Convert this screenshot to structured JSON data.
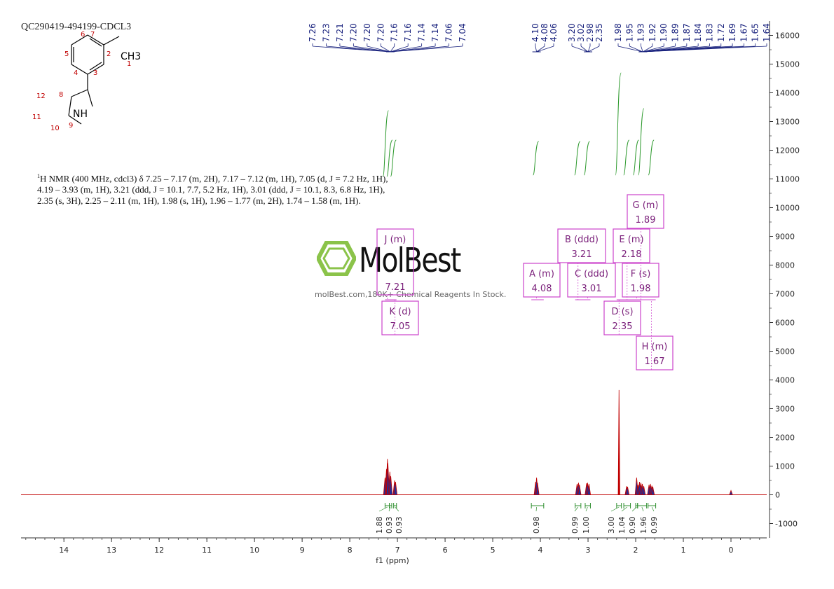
{
  "sample_id": "QC290419-494199-CDCL3",
  "molecule": {
    "atom_labels": [
      "1",
      "2",
      "3",
      "4",
      "5",
      "6",
      "7",
      "8",
      "9",
      "10",
      "11",
      "12"
    ],
    "group_ch3": "CH3",
    "group_nh": "NH"
  },
  "nmr_text": {
    "line1_sup": "1",
    "line1": "H NMR (400 MHz, cdcl3) δ 7.25 – 7.17 (m, 2H), 7.17 – 7.12 (m, 1H), 7.05 (d, J = 7.2 Hz, 1H),",
    "line2": "4.19 – 3.93 (m, 1H), 3.21 (ddd, J = 10.1, 7.7, 5.2 Hz, 1H), 3.01 (ddd, J = 10.1, 8.3, 6.8 Hz, 1H),",
    "line3": "2.35 (s, 3H), 2.25 – 2.11 (m, 1H), 1.98 (s, 1H), 1.96 – 1.77 (m, 2H), 1.74 – 1.58 (m, 1H)."
  },
  "watermark": {
    "brand": "MolBest",
    "tagline": "molBest.com,180K+ Chemical Reagents In Stock."
  },
  "colors": {
    "spectrum": "#c00000",
    "peak_fill": "#1f2f9a",
    "integral": "#2e9a2e",
    "integral_bracket": "#2f8f2f",
    "peak_label": "#1a237e",
    "multiplet_box": "#cc44cc",
    "axis": "#333333",
    "watermark_green": "#8bc34a"
  },
  "chart_data": {
    "type": "line",
    "xlabel": "f1 (ppm)",
    "xlim": [
      14.9,
      -0.75
    ],
    "x_ticks": [
      "14",
      "13",
      "12",
      "11",
      "10",
      "9",
      "8",
      "7",
      "6",
      "5",
      "4",
      "3",
      "2",
      "1",
      "0"
    ],
    "ylim": [
      -1500,
      16500
    ],
    "y_ticks": [
      "16000",
      "15000",
      "14000",
      "13000",
      "12000",
      "11000",
      "10000",
      "9000",
      "8000",
      "7000",
      "6000",
      "5000",
      "4000",
      "3000",
      "2000",
      "1000",
      "0",
      "-1000"
    ],
    "peak_labels": [
      "7.26",
      "7.23",
      "7.21",
      "7.20",
      "7.20",
      "7.20",
      "7.16",
      "7.16",
      "7.14",
      "7.14",
      "7.06",
      "7.04",
      "4.10",
      "4.08",
      "4.06",
      "3.20",
      "3.02",
      "2.98",
      "2.35",
      "1.98",
      "1.95",
      "1.93",
      "1.92",
      "1.90",
      "1.89",
      "1.87",
      "1.84",
      "1.83",
      "1.72",
      "1.69",
      "1.67",
      "1.65",
      "1.64"
    ],
    "peaks": [
      {
        "ppm": 7.26,
        "height": 600
      },
      {
        "ppm": 7.23,
        "height": 900
      },
      {
        "ppm": 7.21,
        "height": 1250
      },
      {
        "ppm": 7.2,
        "height": 1100
      },
      {
        "ppm": 7.16,
        "height": 800
      },
      {
        "ppm": 7.14,
        "height": 650
      },
      {
        "ppm": 7.06,
        "height": 500
      },
      {
        "ppm": 7.04,
        "height": 450
      },
      {
        "ppm": 4.1,
        "height": 450
      },
      {
        "ppm": 4.08,
        "height": 600
      },
      {
        "ppm": 4.06,
        "height": 420
      },
      {
        "ppm": 3.23,
        "height": 380
      },
      {
        "ppm": 3.2,
        "height": 420
      },
      {
        "ppm": 3.18,
        "height": 350
      },
      {
        "ppm": 3.03,
        "height": 400
      },
      {
        "ppm": 3.01,
        "height": 420
      },
      {
        "ppm": 2.98,
        "height": 380
      },
      {
        "ppm": 2.35,
        "height": 3650
      },
      {
        "ppm": 2.19,
        "height": 300
      },
      {
        "ppm": 2.17,
        "height": 280
      },
      {
        "ppm": 1.98,
        "height": 600
      },
      {
        "ppm": 1.95,
        "height": 350
      },
      {
        "ppm": 1.92,
        "height": 450
      },
      {
        "ppm": 1.89,
        "height": 420
      },
      {
        "ppm": 1.86,
        "height": 380
      },
      {
        "ppm": 1.83,
        "height": 300
      },
      {
        "ppm": 1.72,
        "height": 350
      },
      {
        "ppm": 1.69,
        "height": 380
      },
      {
        "ppm": 1.66,
        "height": 320
      },
      {
        "ppm": 1.64,
        "height": 280
      },
      {
        "ppm": 0.0,
        "height": 150
      }
    ],
    "multiplets": [
      {
        "name": "J (m)",
        "shift": "7.21"
      },
      {
        "name": "K (d)",
        "shift": "7.05"
      },
      {
        "name": "A (m)",
        "shift": "4.08"
      },
      {
        "name": "B (ddd)",
        "shift": "3.21"
      },
      {
        "name": "C (ddd)",
        "shift": "3.01"
      },
      {
        "name": "D (s)",
        "shift": "2.35"
      },
      {
        "name": "E (m)",
        "shift": "2.18"
      },
      {
        "name": "F (s)",
        "shift": "1.98"
      },
      {
        "name": "G (m)",
        "shift": "1.89"
      },
      {
        "name": "H (m)",
        "shift": "1.67"
      }
    ],
    "integrals": [
      {
        "ppm": 7.21,
        "value": "1.88",
        "range": [
          7.26,
          7.17
        ]
      },
      {
        "ppm": 7.15,
        "value": "0.93",
        "range": [
          7.17,
          7.12
        ]
      },
      {
        "ppm": 7.05,
        "value": "0.93",
        "range": [
          7.08,
          7.02
        ]
      },
      {
        "ppm": 4.08,
        "value": "0.98",
        "range": [
          4.19,
          3.93
        ]
      },
      {
        "ppm": 3.21,
        "value": "0.99",
        "range": [
          3.27,
          3.15
        ]
      },
      {
        "ppm": 3.01,
        "value": "1.00",
        "range": [
          3.06,
          2.95
        ]
      },
      {
        "ppm": 2.35,
        "value": "3.00",
        "range": [
          2.4,
          2.3
        ]
      },
      {
        "ppm": 2.18,
        "value": "1.04",
        "range": [
          2.25,
          2.11
        ]
      },
      {
        "ppm": 1.98,
        "value": "0.90",
        "range": [
          2.0,
          1.96
        ]
      },
      {
        "ppm": 1.87,
        "value": "1.96",
        "range": [
          1.96,
          1.77
        ]
      },
      {
        "ppm": 1.66,
        "value": "0.99",
        "range": [
          1.74,
          1.58
        ]
      }
    ]
  }
}
